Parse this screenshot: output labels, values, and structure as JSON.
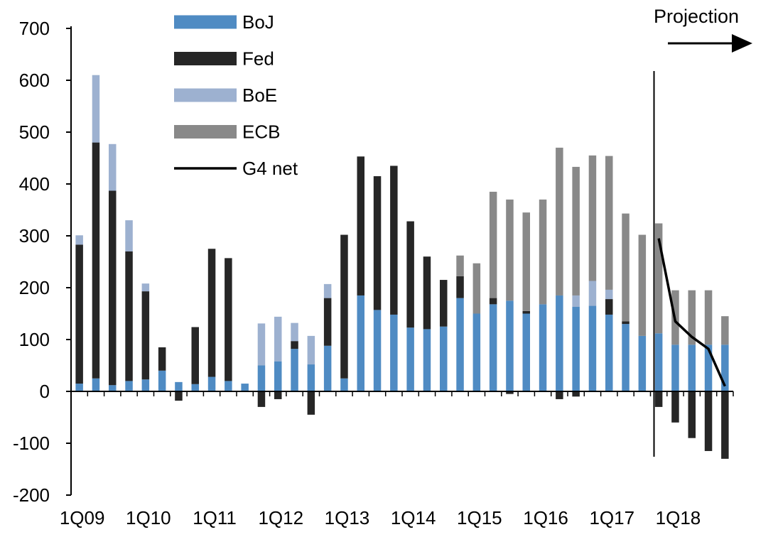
{
  "chart_data": {
    "type": "bar",
    "stacked": true,
    "title": "",
    "xlabel": "",
    "ylabel": "",
    "ylim": [
      -200,
      700
    ],
    "yticks": [
      -200,
      -100,
      0,
      100,
      200,
      300,
      400,
      500,
      600,
      700
    ],
    "grid": false,
    "legend_placement": "top-center",
    "annotation": "Projection",
    "projection_start_index": 35,
    "categories": [
      "1Q09",
      "2Q09",
      "3Q09",
      "4Q09",
      "1Q10",
      "2Q10",
      "3Q10",
      "4Q10",
      "1Q11",
      "2Q11",
      "3Q11",
      "4Q11",
      "1Q12",
      "2Q12",
      "3Q12",
      "4Q12",
      "1Q13",
      "2Q13",
      "3Q13",
      "4Q13",
      "1Q14",
      "2Q14",
      "3Q14",
      "4Q14",
      "1Q15",
      "2Q15",
      "3Q15",
      "4Q15",
      "1Q16",
      "2Q16",
      "3Q16",
      "4Q16",
      "1Q17",
      "2Q17",
      "3Q17",
      "4Q17",
      "1Q18",
      "2Q18",
      "3Q18",
      "4Q18"
    ],
    "x_tick_labels": [
      "1Q09",
      "1Q10",
      "1Q11",
      "1Q12",
      "1Q13",
      "1Q14",
      "1Q15",
      "1Q16",
      "1Q17",
      "1Q18"
    ],
    "series": [
      {
        "name": "BoJ",
        "color": "#4f8bc3",
        "values": [
          15,
          25,
          12,
          20,
          23,
          40,
          18,
          14,
          28,
          20,
          15,
          50,
          58,
          82,
          52,
          88,
          25,
          185,
          157,
          148,
          123,
          120,
          125,
          180,
          150,
          168,
          175,
          150,
          168,
          185,
          163,
          165,
          148,
          130,
          107,
          112,
          90,
          90,
          90,
          90
        ]
      },
      {
        "name": "Fed",
        "color": "#262626",
        "values": [
          268,
          455,
          375,
          250,
          170,
          45,
          -18,
          110,
          247,
          237,
          0,
          -30,
          -15,
          15,
          -45,
          92,
          277,
          268,
          258,
          287,
          205,
          140,
          90,
          42,
          0,
          12,
          -5,
          5,
          0,
          -15,
          -10,
          0,
          30,
          5,
          0,
          -30,
          -60,
          -90,
          -115,
          -130
        ]
      },
      {
        "name": "BoE",
        "color": "#9db1d0",
        "values": [
          18,
          130,
          90,
          60,
          15,
          0,
          0,
          0,
          0,
          0,
          0,
          81,
          86,
          35,
          55,
          27,
          0,
          0,
          0,
          0,
          0,
          0,
          0,
          0,
          0,
          0,
          0,
          0,
          0,
          0,
          22,
          48,
          18,
          0,
          0,
          0,
          0,
          0,
          0,
          0
        ]
      },
      {
        "name": "ECB",
        "color": "#898989",
        "values": [
          0,
          0,
          0,
          0,
          0,
          0,
          0,
          0,
          0,
          0,
          0,
          0,
          0,
          0,
          0,
          0,
          0,
          0,
          0,
          0,
          0,
          0,
          0,
          40,
          97,
          205,
          195,
          190,
          202,
          285,
          248,
          242,
          258,
          208,
          195,
          212,
          105,
          105,
          105,
          55
        ]
      }
    ],
    "lines": [
      {
        "name": "G4 net",
        "color": "#000000",
        "x_start_index": 35,
        "values": [
          295,
          135,
          105,
          82,
          10
        ]
      }
    ]
  }
}
